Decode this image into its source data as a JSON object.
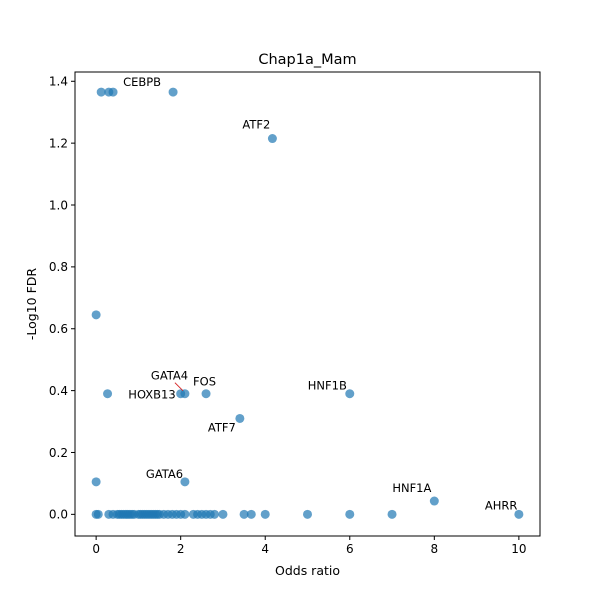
{
  "chart_data": {
    "type": "scatter",
    "title": "Chap1a_Mam",
    "xlabel": "Odds ratio",
    "ylabel": "-Log10 FDR",
    "xlim": [
      -0.5,
      10.5
    ],
    "ylim": [
      -0.07,
      1.43
    ],
    "xticks": [
      0,
      2,
      4,
      6,
      8,
      10
    ],
    "yticks": [
      0.0,
      0.2,
      0.4,
      0.6,
      0.8,
      1.0,
      1.2,
      1.4
    ],
    "grid": false,
    "point_color": "#1f77b4",
    "points": [
      [
        0.12,
        1.365
      ],
      [
        0.3,
        1.365
      ],
      [
        0.4,
        1.365
      ],
      [
        1.82,
        1.365
      ],
      [
        4.17,
        1.215
      ],
      [
        0.0,
        0.645
      ],
      [
        0.27,
        0.39
      ],
      [
        2.0,
        0.39
      ],
      [
        2.1,
        0.39
      ],
      [
        2.6,
        0.39
      ],
      [
        6.0,
        0.39
      ],
      [
        3.4,
        0.31
      ],
      [
        0.0,
        0.105
      ],
      [
        2.1,
        0.105
      ],
      [
        8.0,
        0.043
      ],
      [
        0.0,
        0.0
      ],
      [
        0.05,
        0.0
      ],
      [
        0.3,
        0.0
      ],
      [
        0.4,
        0.0
      ],
      [
        0.5,
        0.0
      ],
      [
        0.55,
        0.0
      ],
      [
        0.6,
        0.0
      ],
      [
        0.65,
        0.0
      ],
      [
        0.7,
        0.0
      ],
      [
        0.75,
        0.0
      ],
      [
        0.8,
        0.0
      ],
      [
        0.85,
        0.0
      ],
      [
        0.9,
        0.0
      ],
      [
        1.0,
        0.0
      ],
      [
        1.05,
        0.0
      ],
      [
        1.1,
        0.0
      ],
      [
        1.15,
        0.0
      ],
      [
        1.2,
        0.0
      ],
      [
        1.25,
        0.0
      ],
      [
        1.3,
        0.0
      ],
      [
        1.35,
        0.0
      ],
      [
        1.4,
        0.0
      ],
      [
        1.45,
        0.0
      ],
      [
        1.5,
        0.0
      ],
      [
        1.6,
        0.0
      ],
      [
        1.7,
        0.0
      ],
      [
        1.8,
        0.0
      ],
      [
        1.9,
        0.0
      ],
      [
        2.0,
        0.0
      ],
      [
        2.1,
        0.0
      ],
      [
        2.3,
        0.0
      ],
      [
        2.4,
        0.0
      ],
      [
        2.5,
        0.0
      ],
      [
        2.6,
        0.0
      ],
      [
        2.7,
        0.0
      ],
      [
        2.8,
        0.0
      ],
      [
        3.0,
        0.0
      ],
      [
        3.5,
        0.0
      ],
      [
        3.67,
        0.0
      ],
      [
        4.0,
        0.0
      ],
      [
        5.0,
        0.0
      ],
      [
        6.0,
        0.0
      ],
      [
        7.0,
        0.0
      ],
      [
        10.0,
        0.0
      ]
    ],
    "annotations": [
      {
        "label": "CEBPB",
        "x": 1.82,
        "y": 1.365
      },
      {
        "label": "ATF2",
        "x": 4.17,
        "y": 1.215
      },
      {
        "label": "GATA4",
        "x": 2.1,
        "y": 0.39
      },
      {
        "label": "FOS",
        "x": 2.6,
        "y": 0.39
      },
      {
        "label": "HOXB13",
        "x": 2.0,
        "y": 0.39
      },
      {
        "label": "HNF1B",
        "x": 6.0,
        "y": 0.39
      },
      {
        "label": "ATF7",
        "x": 3.4,
        "y": 0.31
      },
      {
        "label": "GATA6",
        "x": 2.1,
        "y": 0.105
      },
      {
        "label": "HNF1A",
        "x": 8.0,
        "y": 0.043
      },
      {
        "label": "AHRR",
        "x": 10.0,
        "y": 0.0
      }
    ]
  }
}
